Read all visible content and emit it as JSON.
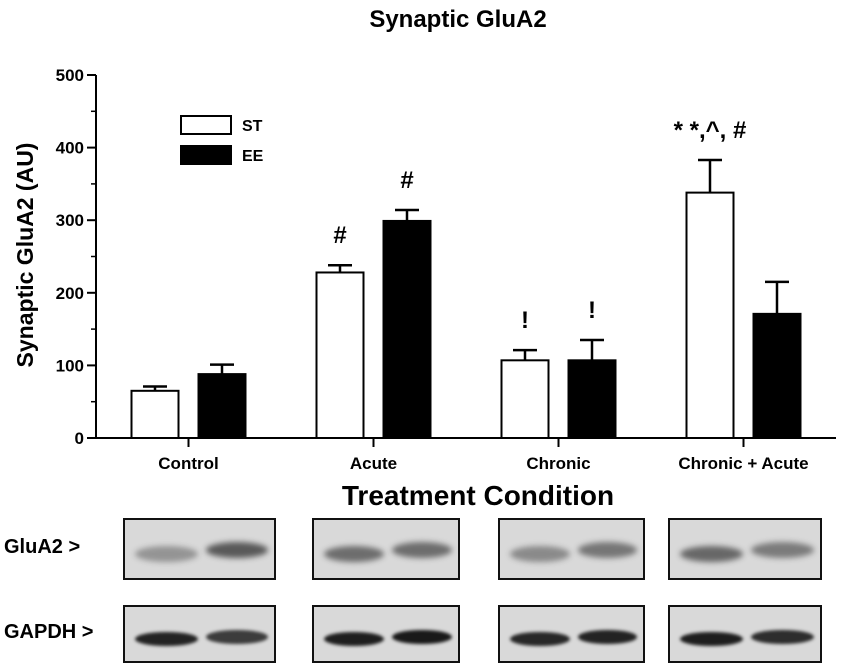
{
  "chart_data": {
    "type": "bar",
    "title": "Synaptic GluA2",
    "xlabel": "Treatment Condition",
    "ylabel": "Synaptic GluA2 (AU)",
    "ylim": [
      0,
      500
    ],
    "yticks": [
      0,
      100,
      200,
      300,
      400,
      500
    ],
    "categories": [
      "Control",
      "Acute",
      "Chronic",
      "Chronic + Acute"
    ],
    "series": [
      {
        "name": "ST",
        "fill": "#ffffff",
        "values": [
          65,
          228,
          107,
          338
        ],
        "errors": [
          6,
          10,
          14,
          45
        ]
      },
      {
        "name": "EE",
        "fill": "#000000",
        "values": [
          88,
          299,
          107,
          171
        ],
        "errors": [
          13,
          15,
          28,
          44
        ]
      }
    ],
    "annotations": [
      {
        "series": "ST",
        "category": "Acute",
        "text": "#"
      },
      {
        "series": "EE",
        "category": "Acute",
        "text": "#"
      },
      {
        "series": "ST",
        "category": "Chronic",
        "text": "!"
      },
      {
        "series": "EE",
        "category": "Chronic",
        "text": "!"
      },
      {
        "series": "ST",
        "category": "Chronic + Acute",
        "text": "* *,^, #"
      }
    ],
    "legend_position": "top-left",
    "grid": false
  },
  "blots": {
    "rows": [
      {
        "label": "GluA2 >"
      },
      {
        "label": "GAPDH >"
      }
    ]
  }
}
